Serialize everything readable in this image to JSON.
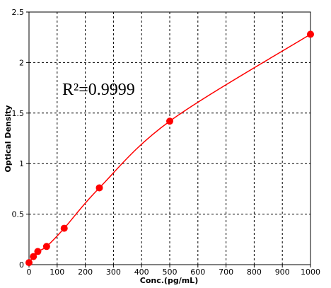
{
  "chart_data": {
    "type": "scatter",
    "xlabel": "Conc.(pg/mL)",
    "ylabel": "Optical Density",
    "xlim": [
      0,
      1000
    ],
    "ylim": [
      0,
      2.5
    ],
    "x_ticks": [
      "0",
      "100",
      "200",
      "300",
      "400",
      "500",
      "600",
      "700",
      "800",
      "900",
      "1000"
    ],
    "y_ticks": [
      "0",
      "0.5",
      "1",
      "1.5",
      "2",
      "2.5"
    ],
    "grid": true,
    "annotation": "R²=0.9999",
    "colors": {
      "series": "#ff0000",
      "grid": "#000000"
    },
    "series": [
      {
        "points": [
          {
            "x": 0,
            "y": 0.02
          },
          {
            "x": 15.6,
            "y": 0.08
          },
          {
            "x": 31.25,
            "y": 0.13
          },
          {
            "x": 62.5,
            "y": 0.18
          },
          {
            "x": 125,
            "y": 0.36
          },
          {
            "x": 250,
            "y": 0.76
          },
          {
            "x": 500,
            "y": 1.42
          },
          {
            "x": 1000,
            "y": 2.28
          }
        ]
      }
    ]
  }
}
